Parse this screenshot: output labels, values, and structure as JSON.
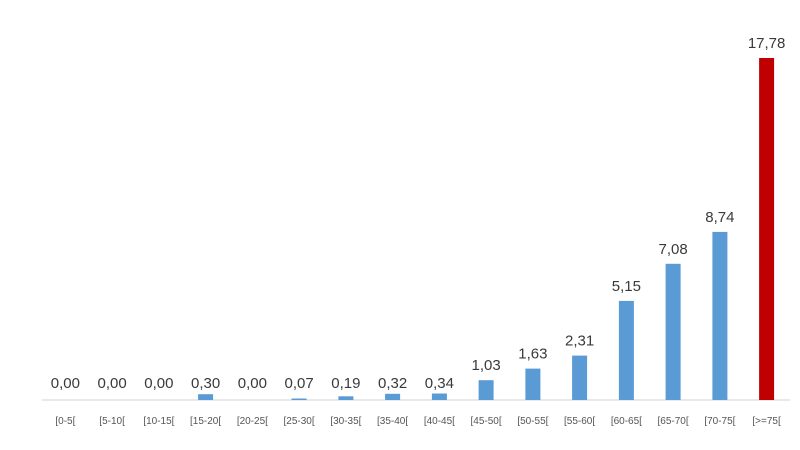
{
  "chart_data": {
    "type": "bar",
    "title": "",
    "xlabel": "",
    "ylabel": "",
    "categories": [
      "[0-5[",
      "[5-10[",
      "[10-15[",
      "[15-20[",
      "[20-25[",
      "[25-30[",
      "[30-35[",
      "[35-40[",
      "[40-45[",
      "[45-50[",
      "[50-55[",
      "[55-60[",
      "[60-65[",
      "[65-70[",
      "[70-75[",
      "[>=75["
    ],
    "values": [
      0.0,
      0.0,
      0.0,
      0.3,
      0.0,
      0.07,
      0.19,
      0.32,
      0.34,
      1.03,
      1.63,
      2.31,
      5.15,
      7.08,
      8.74,
      17.78
    ],
    "value_labels": [
      "0,00",
      "0,00",
      "0,00",
      "0,30",
      "0,00",
      "0,07",
      "0,19",
      "0,32",
      "0,34",
      "1,03",
      "1,63",
      "2,31",
      "5,15",
      "7,08",
      "8,74",
      "17,78"
    ],
    "ylim": [
      0,
      17.78
    ],
    "grid": false,
    "bar_colors": [
      "#5b9bd5",
      "#5b9bd5",
      "#5b9bd5",
      "#5b9bd5",
      "#5b9bd5",
      "#5b9bd5",
      "#5b9bd5",
      "#5b9bd5",
      "#5b9bd5",
      "#5b9bd5",
      "#5b9bd5",
      "#5b9bd5",
      "#5b9bd5",
      "#5b9bd5",
      "#5b9bd5",
      "#c00000"
    ]
  }
}
